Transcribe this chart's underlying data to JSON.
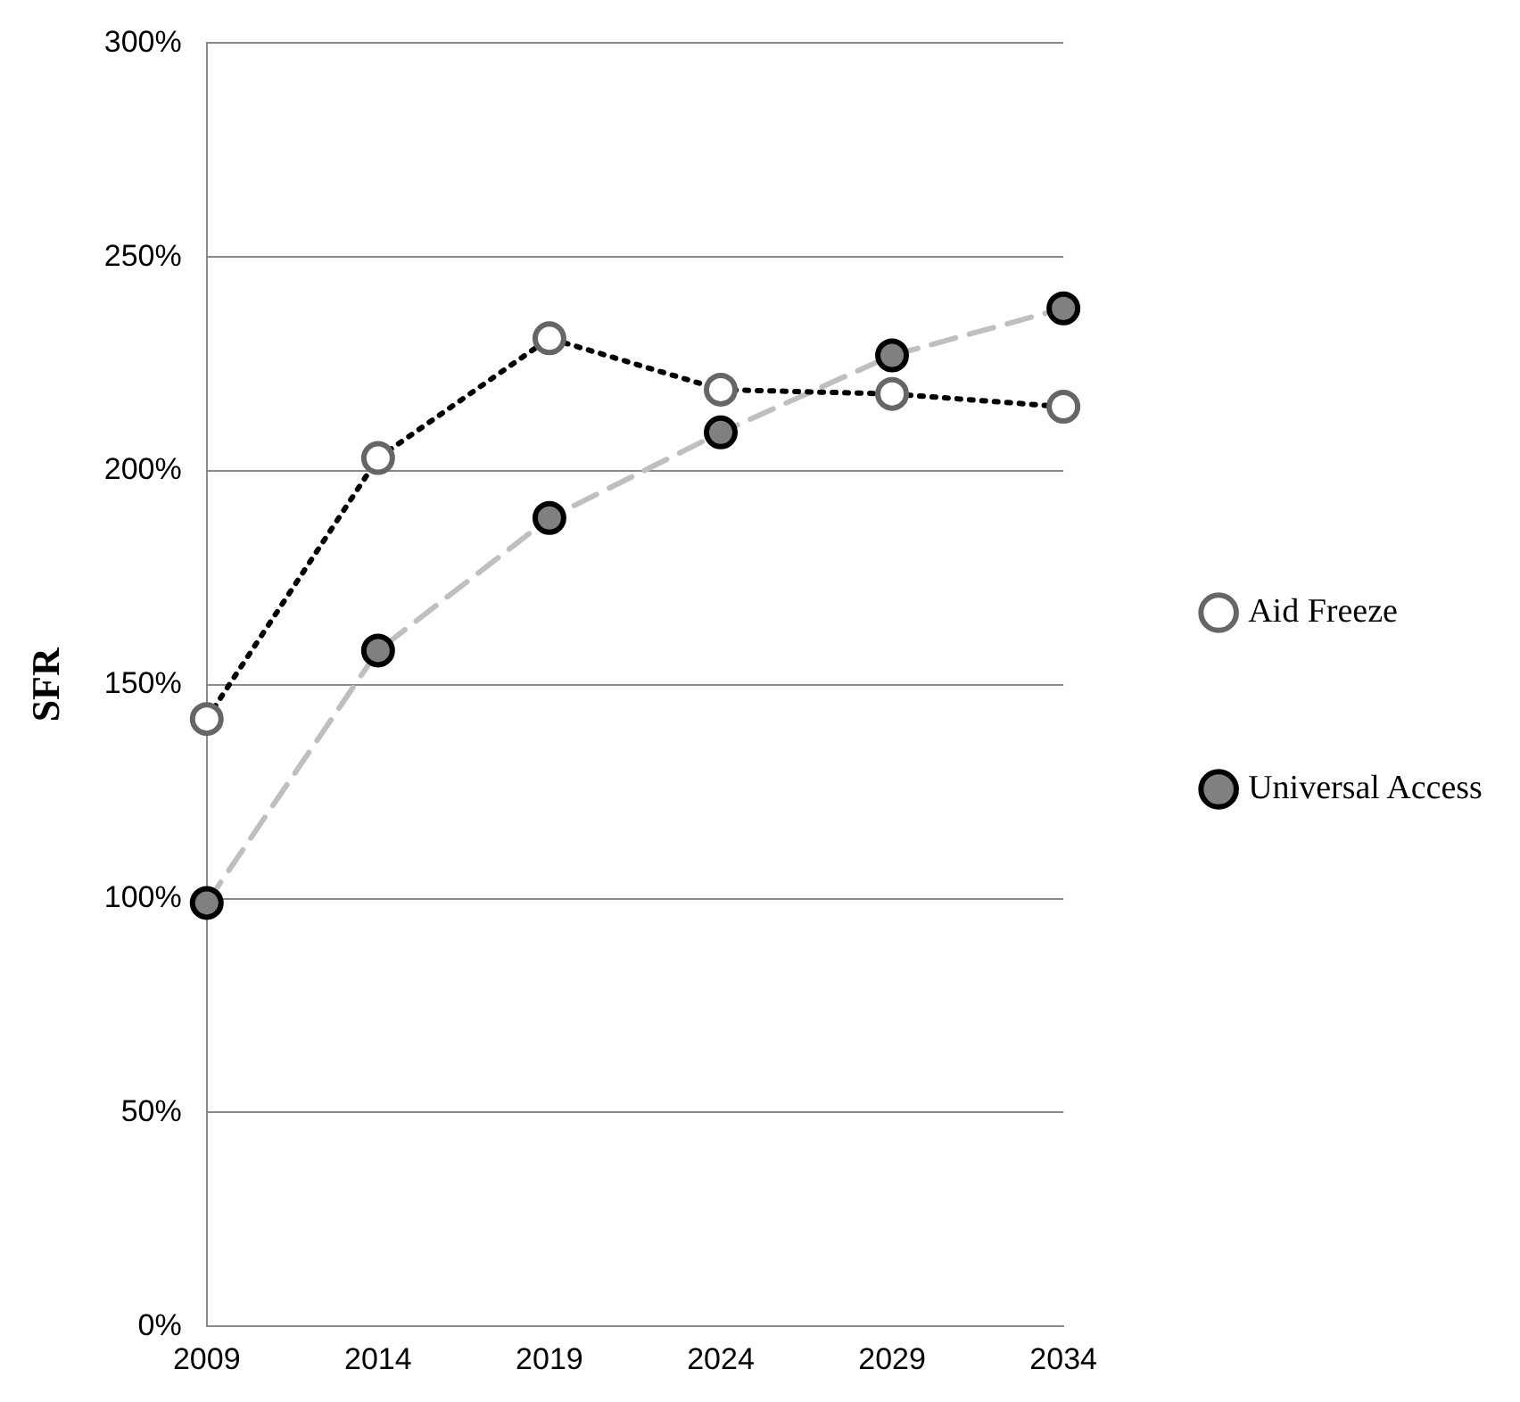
{
  "chart_data": {
    "type": "line",
    "ylabel": "SFR",
    "categories": [
      "2009",
      "2014",
      "2019",
      "2024",
      "2029",
      "2034"
    ],
    "series": [
      {
        "name": "Aid Freeze",
        "color": "#000000",
        "line_style": "dotted",
        "values": [
          142,
          203,
          231,
          219,
          218,
          215
        ]
      },
      {
        "name": "Universal Access",
        "color": "#bfbfbf",
        "line_style": "dashed",
        "values": [
          99,
          158,
          189,
          209,
          227,
          238
        ]
      }
    ],
    "ylim": [
      0,
      300
    ],
    "yticks": [
      {
        "value": 0,
        "label": "0%"
      },
      {
        "value": 50,
        "label": "50%"
      },
      {
        "value": 100,
        "label": "100%"
      },
      {
        "value": 150,
        "label": "150%"
      },
      {
        "value": 200,
        "label": "200%"
      },
      {
        "value": 250,
        "label": "250%"
      },
      {
        "value": 300,
        "label": "300%"
      }
    ],
    "grid": "y",
    "legend": "right",
    "marker": "circle"
  }
}
